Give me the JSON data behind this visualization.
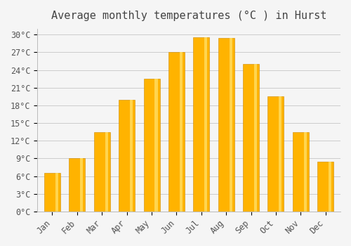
{
  "title": "Average monthly temperatures (°C ) in Hurst",
  "months": [
    "Jan",
    "Feb",
    "Mar",
    "Apr",
    "May",
    "Jun",
    "Jul",
    "Aug",
    "Sep",
    "Oct",
    "Nov",
    "Dec"
  ],
  "temperatures": [
    6.5,
    9.0,
    13.5,
    19.0,
    22.5,
    27.0,
    29.5,
    29.4,
    25.0,
    19.5,
    13.5,
    8.5
  ],
  "bar_color": "#FFB300",
  "bar_highlight_color": "#FFD54F",
  "bar_edge_color": "#CC8800",
  "ylim": [
    0,
    31
  ],
  "yticks": [
    0,
    3,
    6,
    9,
    12,
    15,
    18,
    21,
    24,
    27,
    30
  ],
  "ytick_labels": [
    "0°C",
    "3°C",
    "6°C",
    "9°C",
    "12°C",
    "15°C",
    "18°C",
    "21°C",
    "24°C",
    "27°C",
    "30°C"
  ],
  "background_color": "#f5f5f5",
  "grid_color": "#cccccc",
  "title_fontsize": 11,
  "tick_fontsize": 8.5,
  "bar_width": 0.65,
  "figsize": [
    5.0,
    3.5
  ],
  "dpi": 100
}
